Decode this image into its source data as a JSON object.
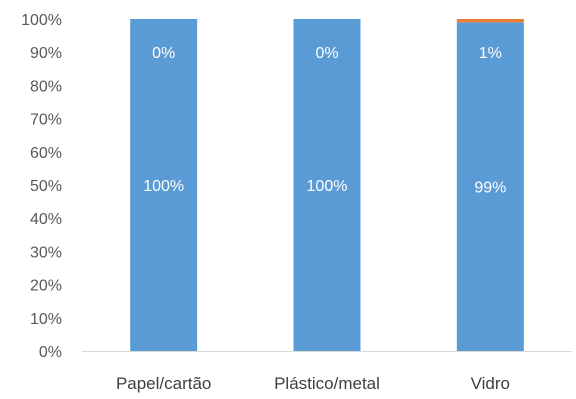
{
  "chart_data": {
    "type": "bar",
    "stacked": "percent",
    "categories": [
      "Papel/cartão",
      "Plástico/metal",
      "Vidro"
    ],
    "series": [
      {
        "values": [
          100,
          100,
          99
        ],
        "labels": [
          "100%",
          "100%",
          "99%"
        ],
        "color": "#5B9BD5"
      },
      {
        "values": [
          0,
          0,
          1
        ],
        "labels": [
          "0%",
          "0%",
          "1%"
        ],
        "color": "#ED7D31"
      }
    ],
    "yticks": [
      "0%",
      "10%",
      "20%",
      "30%",
      "40%",
      "50%",
      "60%",
      "70%",
      "80%",
      "90%",
      "100%"
    ],
    "ylim": [
      0,
      100
    ],
    "grid": false,
    "legend": "none"
  }
}
